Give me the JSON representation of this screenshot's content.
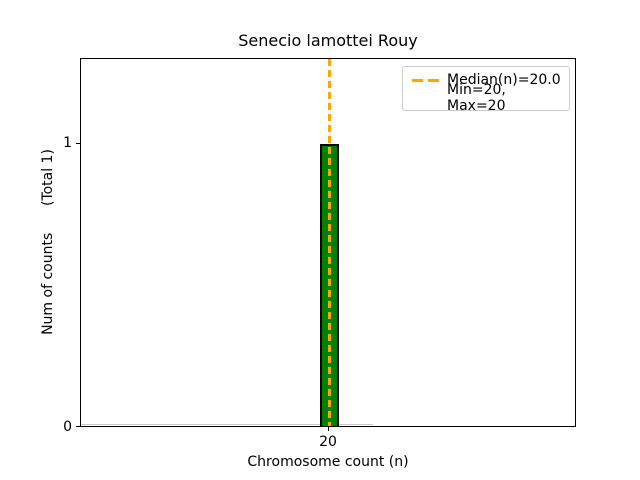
{
  "chart_data": {
    "type": "bar",
    "title": "Senecio lamottei Rouy",
    "xlabel": "Chromosome count (n)",
    "ylabel": "Num of counts      (Total 1)",
    "categories": [
      "20"
    ],
    "values": [
      1
    ],
    "total_counts": 1,
    "x_ticks": [
      "20"
    ],
    "y_ticks": [
      "0",
      "1"
    ],
    "ylim": [
      0,
      1.3
    ],
    "median_n": 20.0,
    "min_n": 20,
    "max_n": 20,
    "grid": false,
    "legend": {
      "position": "upper right",
      "entries": [
        {
          "label": "Median(n)=20.0",
          "marker": "orange-dashed-line"
        },
        {
          "label": "Min=20, Max=20",
          "marker": "none"
        }
      ]
    },
    "colors": {
      "bar_fill": "#008000",
      "bar_edge": "#000000",
      "median_line": "#FFA500",
      "zero_bins_hint": "#c8c8c8",
      "spine": "#000000",
      "background": "#ffffff"
    }
  }
}
